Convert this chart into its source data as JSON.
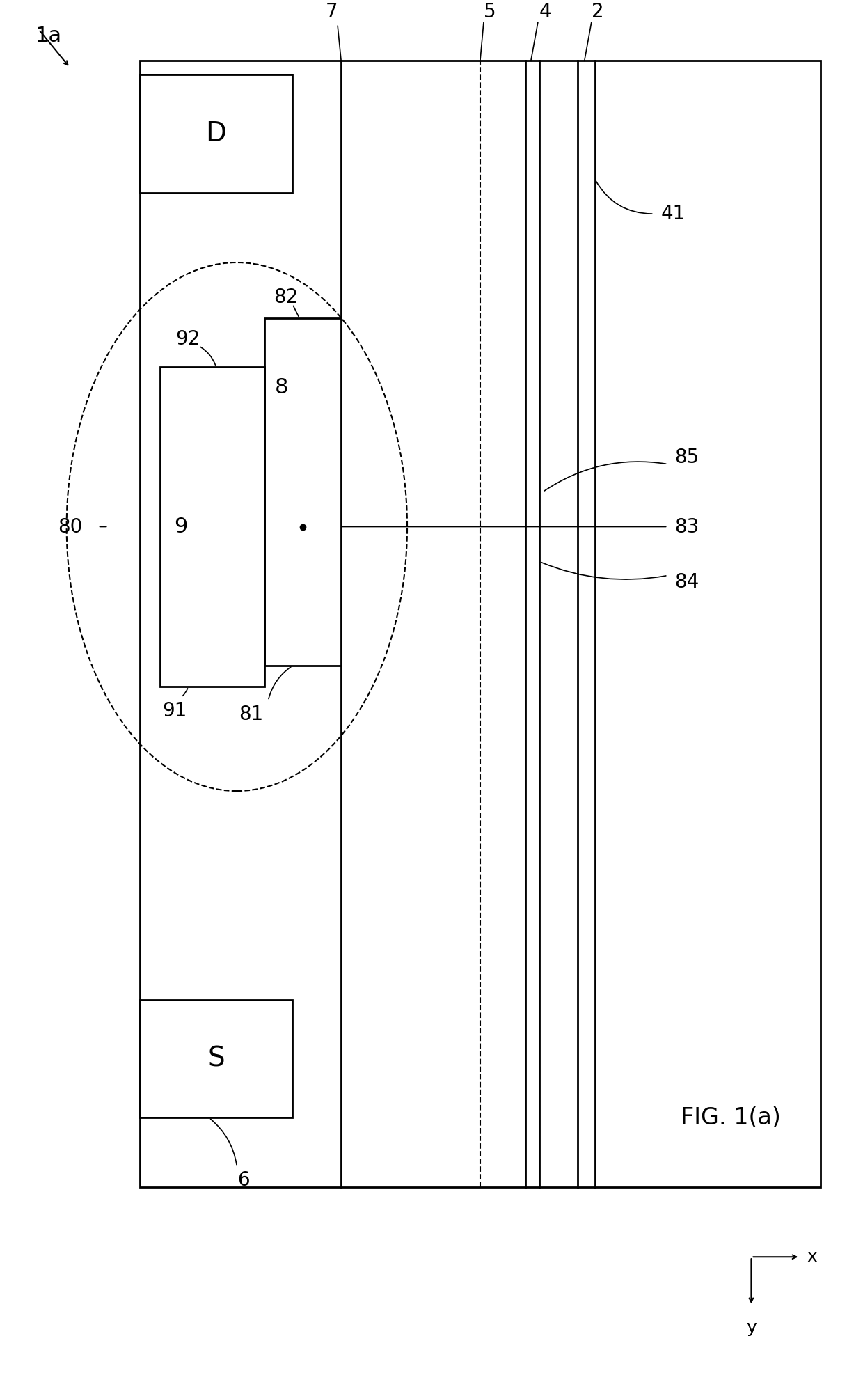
{
  "fig_width": 12.4,
  "fig_height": 20.05,
  "bg_color": "#ffffff",
  "line_color": "#000000",
  "title": "FIG. 1(a)",
  "label_1a": "1a",
  "label_D": "D",
  "label_S": "S",
  "label_2": "2",
  "label_4": "4",
  "label_5": "5",
  "label_6": "6",
  "label_7": "7",
  "label_8": "8",
  "label_9": "9",
  "label_41": "41",
  "label_80": "80",
  "label_81": "81",
  "label_82": "82",
  "label_83": "83",
  "label_84": "84",
  "label_85": "85",
  "label_91": "91",
  "label_92": "92"
}
